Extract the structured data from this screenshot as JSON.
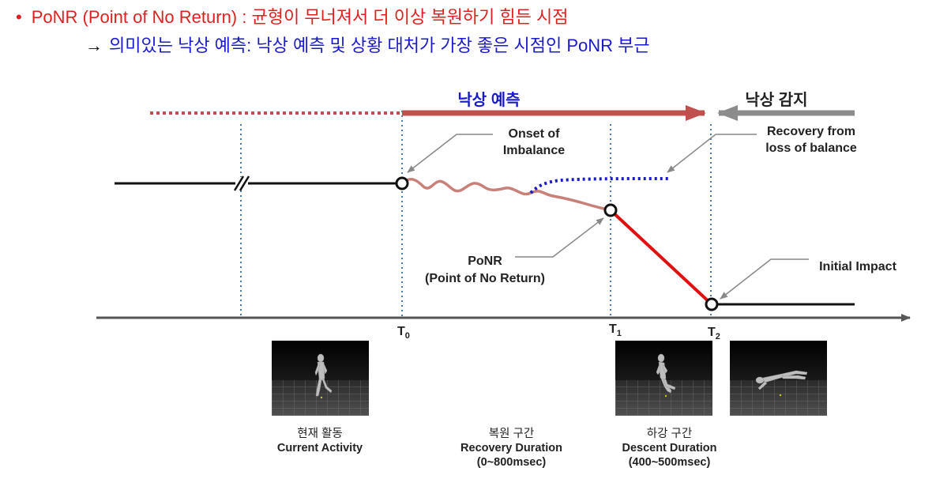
{
  "header": {
    "bullet": "•",
    "line1": "PoNR (Point of No Return) : 균형이 무너져서 더 이상 복원하기 힘든 시점",
    "arrow": "→",
    "line2": "의미있는 낙상 예측: 낙상 예측 및 상황 대처가 가장 좋은 시점인 PoNR 부근"
  },
  "diagram": {
    "prediction_label": "낙상 예측",
    "detection_label": "낙상 감지",
    "onset_label": [
      "Onset of",
      "Imbalance"
    ],
    "recovery_label": [
      "Recovery from",
      "loss of balance"
    ],
    "ponr_label": [
      "PoNR",
      "(Point of No Return)"
    ],
    "impact_label": "Initial Impact",
    "ticks": [
      {
        "base": "T",
        "sub": "0"
      },
      {
        "base": "T",
        "sub": "1"
      },
      {
        "base": "T",
        "sub": "2"
      }
    ]
  },
  "captions": [
    {
      "ko": "현재 활동",
      "en": "Current Activity",
      "extra": ""
    },
    {
      "ko": "복원 구간",
      "en": "Recovery Duration",
      "extra": "(0~800msec)"
    },
    {
      "ko": "하강 구간",
      "en": "Descent Duration",
      "extra": "(400~500msec)"
    }
  ],
  "colors": {
    "red_text": "#e02020",
    "blue_text": "#1a1acc",
    "prediction_arrow": "#c0504d",
    "wavy_line": "#c98079",
    "descent_line": "#e01010",
    "axis": "#555555",
    "guide_lines": "#4a7ab0"
  },
  "icons": [
    "arrow-right-icon",
    "arrow-left-icon",
    "break-mark-icon",
    "event-circle-icon"
  ]
}
